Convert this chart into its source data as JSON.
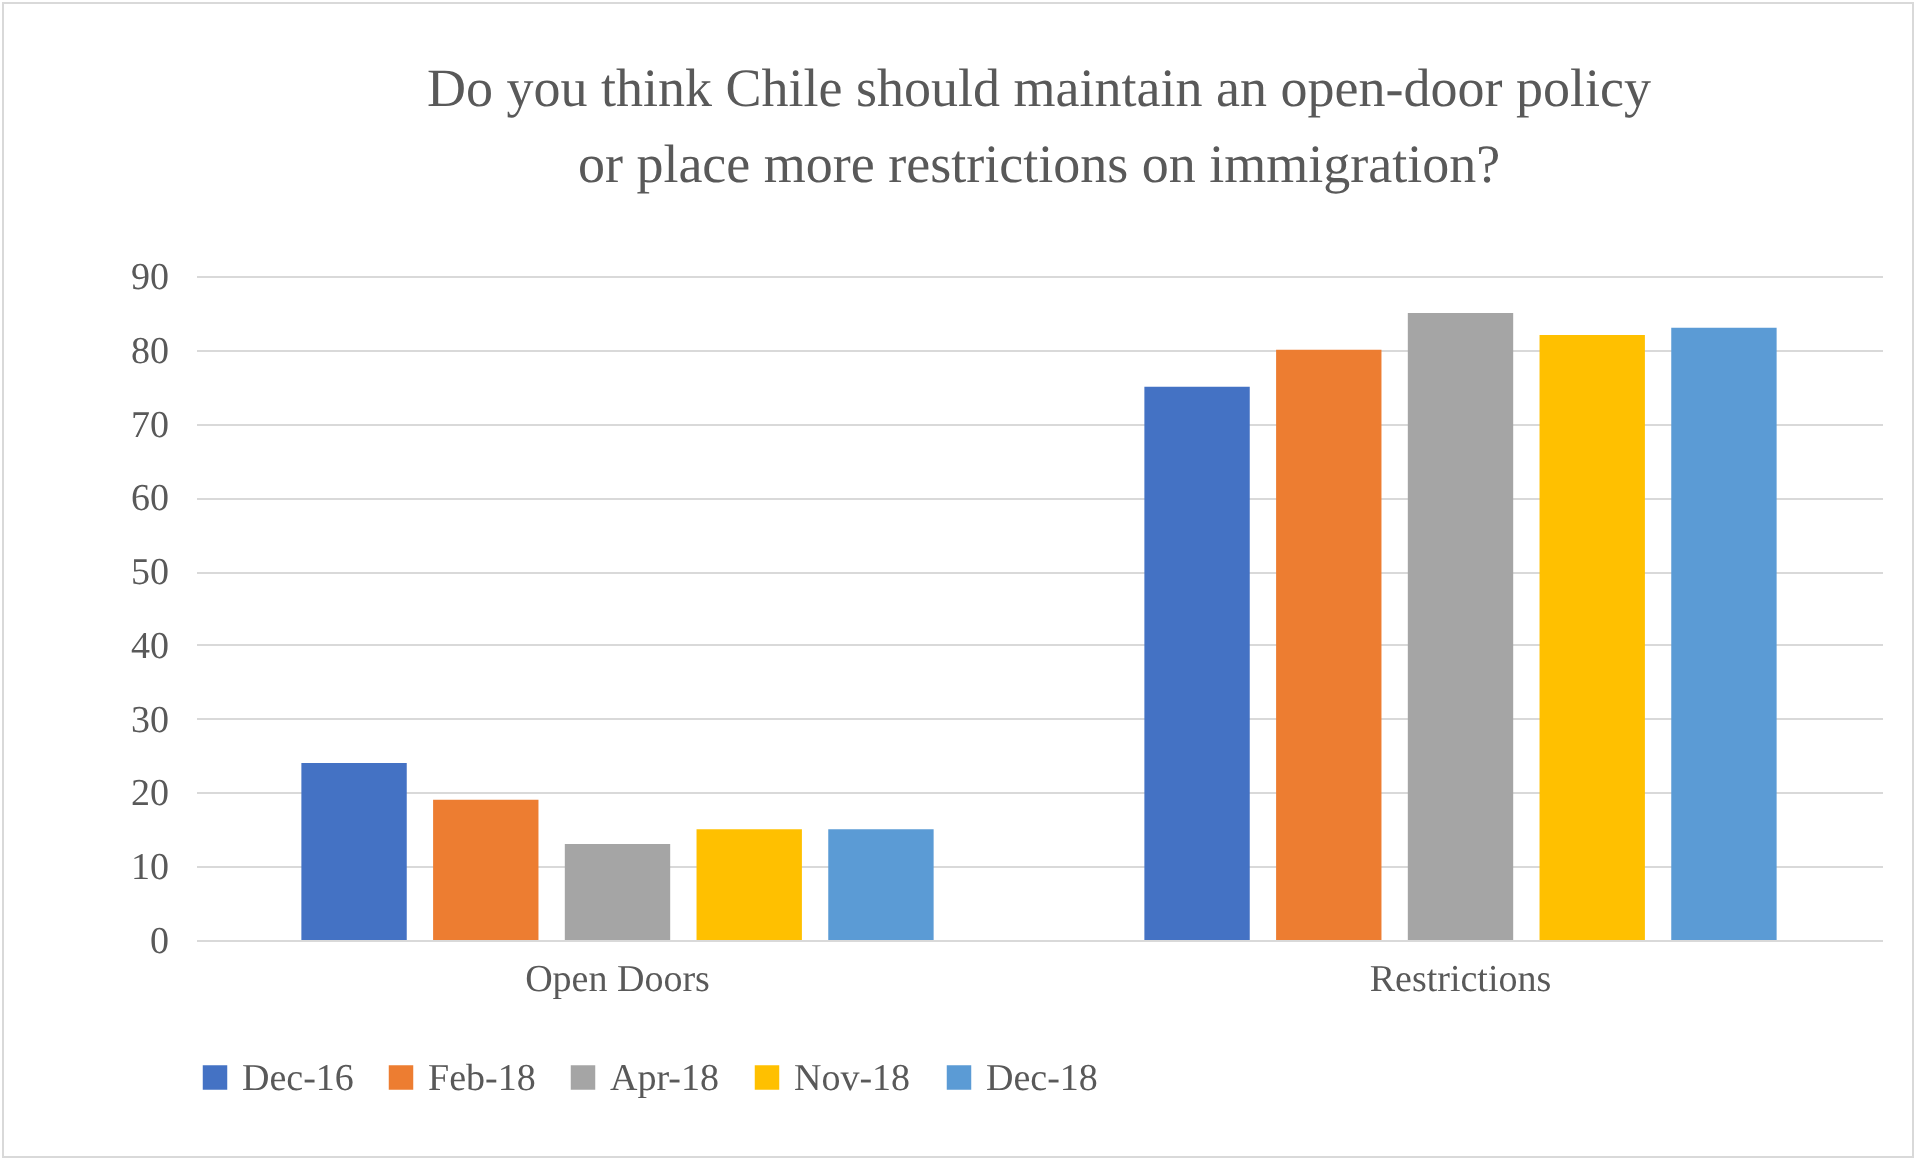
{
  "chart_data": {
    "type": "bar",
    "title": "Do you think Chile should maintain an open-door policy\nor place more restrictions on immigration?",
    "categories": [
      "Open Doors",
      "Restrictions"
    ],
    "series": [
      {
        "name": "Dec-16",
        "color": "#4472c4",
        "values": [
          24,
          75
        ]
      },
      {
        "name": "Feb-18",
        "color": "#ed7d31",
        "values": [
          19,
          80
        ]
      },
      {
        "name": "Apr-18",
        "color": "#a5a5a5",
        "values": [
          13,
          85
        ]
      },
      {
        "name": "Nov-18",
        "color": "#ffc000",
        "values": [
          15,
          82
        ]
      },
      {
        "name": "Dec-18",
        "color": "#5b9bd5",
        "values": [
          15,
          83
        ]
      }
    ],
    "ylim": [
      0,
      90
    ],
    "yticks": [
      0,
      10,
      20,
      30,
      40,
      50,
      60,
      70,
      80,
      90
    ],
    "grid": "y",
    "legend": "bottom"
  }
}
